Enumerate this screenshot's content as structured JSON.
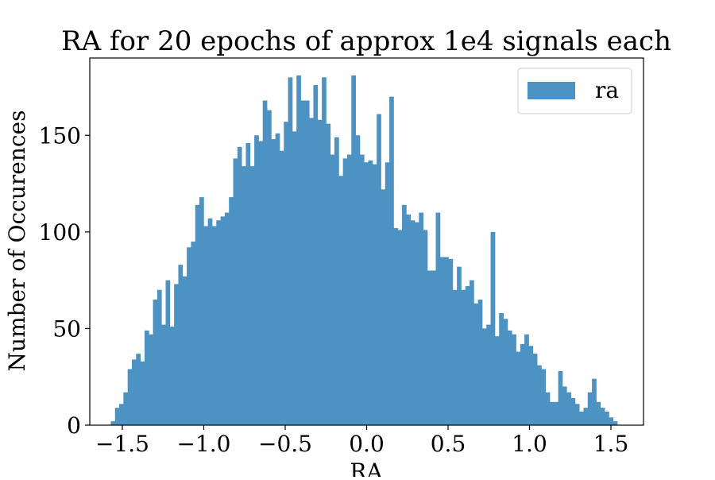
{
  "chart_data": {
    "type": "bar",
    "title": "RA for 20 epochs of approx 1e4 signals each",
    "xlabel": "RA",
    "ylabel": "Number of Occurences",
    "xlim": [
      -1.7,
      1.7
    ],
    "ylim": [
      0,
      190
    ],
    "x_ticks": [
      -1.5,
      -1.0,
      -0.5,
      0.0,
      0.5,
      1.0,
      1.5
    ],
    "x_tick_labels": [
      "−1.5",
      "−1.0",
      "−0.5",
      "0.0",
      "0.5",
      "1.0",
      "1.5"
    ],
    "y_ticks": [
      0,
      50,
      100,
      150
    ],
    "y_tick_labels": [
      "0",
      "50",
      "100",
      "150"
    ],
    "grid": false,
    "legend": {
      "position": "top-right",
      "entries": [
        "ra"
      ]
    },
    "bar_color": "#4c92c3",
    "series": [
      {
        "name": "ra",
        "bin_start": -1.571,
        "bin_end": 1.539,
        "values": [
          2,
          9,
          11,
          17,
          29,
          34,
          37,
          33,
          49,
          47,
          65,
          70,
          52,
          75,
          51,
          73,
          83,
          77,
          92,
          95,
          114,
          118,
          103,
          107,
          103,
          106,
          108,
          110,
          118,
          138,
          144,
          134,
          146,
          134,
          150,
          147,
          168,
          163,
          148,
          151,
          142,
          157,
          180,
          152,
          181,
          168,
          168,
          159,
          176,
          158,
          180,
          156,
          140,
          149,
          129,
          138,
          140,
          181,
          150,
          140,
          136,
          137,
          135,
          161,
          122,
          136,
          170,
          102,
          101,
          114,
          109,
          106,
          105,
          110,
          101,
          80,
          80,
          110,
          87,
          87,
          86,
          70,
          82,
          70,
          72,
          75,
          63,
          65,
          50,
          52,
          100,
          46,
          58,
          55,
          49,
          47,
          38,
          42,
          47,
          41,
          37,
          31,
          29,
          17,
          12,
          12,
          28,
          20,
          17,
          14,
          11,
          7,
          9,
          17,
          24,
          12,
          9,
          7,
          4,
          2
        ]
      }
    ]
  }
}
